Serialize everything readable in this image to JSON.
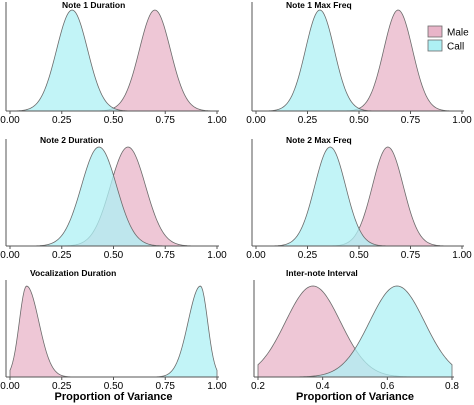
{
  "chart_data": [
    {
      "type": "area",
      "title": "Note 1 Duration",
      "xlabel": "",
      "xlim": [
        0,
        1
      ],
      "xticks": [
        "0.00",
        "0.25",
        "0.50",
        "0.75",
        "1.00"
      ],
      "series": [
        {
          "name": "Male",
          "color": "#e8b4c8",
          "peak_x": 0.7,
          "sd": 0.075,
          "kind": "normal"
        },
        {
          "name": "Call",
          "color": "#aef0f4",
          "peak_x": 0.3,
          "sd": 0.075,
          "kind": "normal"
        }
      ]
    },
    {
      "type": "area",
      "title": "Note 1 Max Freq",
      "xlabel": "",
      "xlim": [
        0,
        1
      ],
      "xticks": [
        "0.00",
        "0.25",
        "0.50",
        "0.75",
        "1.00"
      ],
      "series": [
        {
          "name": "Male",
          "color": "#e8b4c8",
          "peak_x": 0.69,
          "sd": 0.07,
          "kind": "normal"
        },
        {
          "name": "Call",
          "color": "#aef0f4",
          "peak_x": 0.31,
          "sd": 0.07,
          "kind": "normal"
        }
      ],
      "legend": {
        "position": "top-right",
        "entries": [
          "Male",
          "Call"
        ]
      }
    },
    {
      "type": "area",
      "title": "Note 2 Duration",
      "xlabel": "",
      "xlim": [
        0,
        1
      ],
      "xticks": [
        "0.00",
        "0.25",
        "0.50",
        "0.75",
        "1.00"
      ],
      "series": [
        {
          "name": "Male",
          "color": "#e8b4c8",
          "peak_x": 0.57,
          "sd": 0.085,
          "kind": "normal"
        },
        {
          "name": "Call",
          "color": "#aef0f4",
          "peak_x": 0.43,
          "sd": 0.085,
          "kind": "normal"
        }
      ]
    },
    {
      "type": "area",
      "title": "Note 2 Max Freq",
      "xlabel": "",
      "xlim": [
        0,
        1
      ],
      "xticks": [
        "0.00",
        "0.25",
        "0.50",
        "0.75",
        "1.00"
      ],
      "series": [
        {
          "name": "Male",
          "color": "#e8b4c8",
          "peak_x": 0.64,
          "sd": 0.075,
          "kind": "normal"
        },
        {
          "name": "Call",
          "color": "#aef0f4",
          "peak_x": 0.36,
          "sd": 0.075,
          "kind": "normal"
        }
      ]
    },
    {
      "type": "area",
      "title": "Vocalization Duration",
      "xlabel": "Proportion of Variance",
      "xlim": [
        0,
        1
      ],
      "xticks": [
        "0.00",
        "0.25",
        "0.50",
        "0.75",
        "1.00"
      ],
      "series": [
        {
          "name": "Male",
          "color": "#e8b4c8",
          "peak_x": 0.08,
          "sd": 0.035,
          "kind": "skew_right"
        },
        {
          "name": "Call",
          "color": "#aef0f4",
          "peak_x": 0.92,
          "sd": 0.035,
          "kind": "skew_left"
        }
      ]
    },
    {
      "type": "area",
      "title": "Inter-note Interval",
      "xlabel": "Proportion of Variance",
      "xlim": [
        0.2,
        0.8
      ],
      "xticks": [
        "0.2",
        "0.4",
        "0.6",
        "0.8"
      ],
      "xtick_values": [
        0.2,
        0.4,
        0.6,
        0.8
      ],
      "series": [
        {
          "name": "Male",
          "color": "#e8b4c8",
          "peak_x": 0.37,
          "sd": 0.085,
          "kind": "normal"
        },
        {
          "name": "Call",
          "color": "#aef0f4",
          "peak_x": 0.63,
          "sd": 0.085,
          "kind": "normal"
        }
      ]
    }
  ]
}
